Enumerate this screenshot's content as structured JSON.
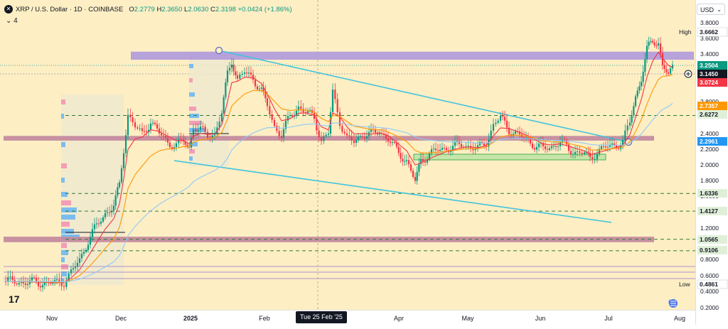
{
  "header": {
    "title": "XRP / U.S. Dollar · 1D · COINBASE",
    "ohlc": [
      {
        "k": "O",
        "v": "2.2779"
      },
      {
        "k": "H",
        "v": "2.3650"
      },
      {
        "k": "L",
        "v": "2.0630"
      },
      {
        "k": "C",
        "v": "2.3198"
      }
    ],
    "change": "+0.0424 (+1.86%)",
    "indicator_count": "4"
  },
  "currency_button": "USD",
  "cursor_date": "Tue 25 Feb '25",
  "chart_data": {
    "type": "candlestick",
    "symbol": "XRP / U.S. Dollar",
    "interval": "1D",
    "exchange": "COINBASE",
    "y_scale": "log",
    "ylim": [
      0.2,
      4.2
    ],
    "y_ticks": [
      "0.2000",
      "0.4000",
      "0.6000",
      "0.8000",
      "1.2000",
      "1.6000",
      "1.8000",
      "2.0000",
      "2.2000",
      "2.4000",
      "2.8000",
      "3.2000",
      "3.4000",
      "3.6000",
      "3.8000"
    ],
    "x_ticks": [
      "Nov",
      "Dec",
      "2025",
      "Feb",
      "Apr",
      "May",
      "Jun",
      "Jul",
      "Aug"
    ],
    "price_labels": [
      {
        "text": "High",
        "value": "3.6662",
        "color": "#ffffff",
        "text_color": "#131722"
      },
      {
        "text": "",
        "value": "3.2504",
        "color": "#089981",
        "text_color": "#ffffff"
      },
      {
        "text": "",
        "value": "3.1450",
        "color": "#131722",
        "text_color": "#ffffff"
      },
      {
        "text": "",
        "value": "3.0724",
        "color": "#f23645",
        "text_color": "#ffffff"
      },
      {
        "text": "",
        "value": "2.7357",
        "color": "#ff9800",
        "text_color": "#ffffff"
      },
      {
        "text": "",
        "value": "2.6272",
        "color": "#e0f0d8",
        "text_color": "#131722"
      },
      {
        "text": "",
        "value": "2.2961",
        "color": "#2196f3",
        "text_color": "#ffffff"
      },
      {
        "text": "",
        "value": "1.6336",
        "color": "#e0f0d8",
        "text_color": "#131722"
      },
      {
        "text": "",
        "value": "1.4127",
        "color": "#e0f0d8",
        "text_color": "#131722"
      },
      {
        "text": "",
        "value": "1.0565",
        "color": "#e0f0d8",
        "text_color": "#131722"
      },
      {
        "text": "",
        "value": "0.9106",
        "color": "#e0f0d8",
        "text_color": "#131722"
      },
      {
        "text": "Low",
        "value": "0.4861",
        "color": "#ffffff",
        "text_color": "#131722"
      }
    ],
    "horizontal_levels": [
      2.6272,
      1.6336,
      1.4127,
      1.0565,
      0.9106
    ],
    "zones": [
      {
        "name": "resistance",
        "price_low": 3.33,
        "price_high": 3.43,
        "color": "#b39ddb"
      },
      {
        "name": "support",
        "price_low": 2.31,
        "price_high": 2.37,
        "color": "#c48b9f"
      },
      {
        "name": "support",
        "price_low": 1.02,
        "price_high": 1.09,
        "color": "#c48b9f"
      }
    ],
    "colors": {
      "up": "#089981",
      "down": "#f23645",
      "ma_fast": "#f23645",
      "ma_mid": "#ff9800",
      "ma_slow": "#90caf9",
      "channel": "#40c4dc"
    }
  }
}
